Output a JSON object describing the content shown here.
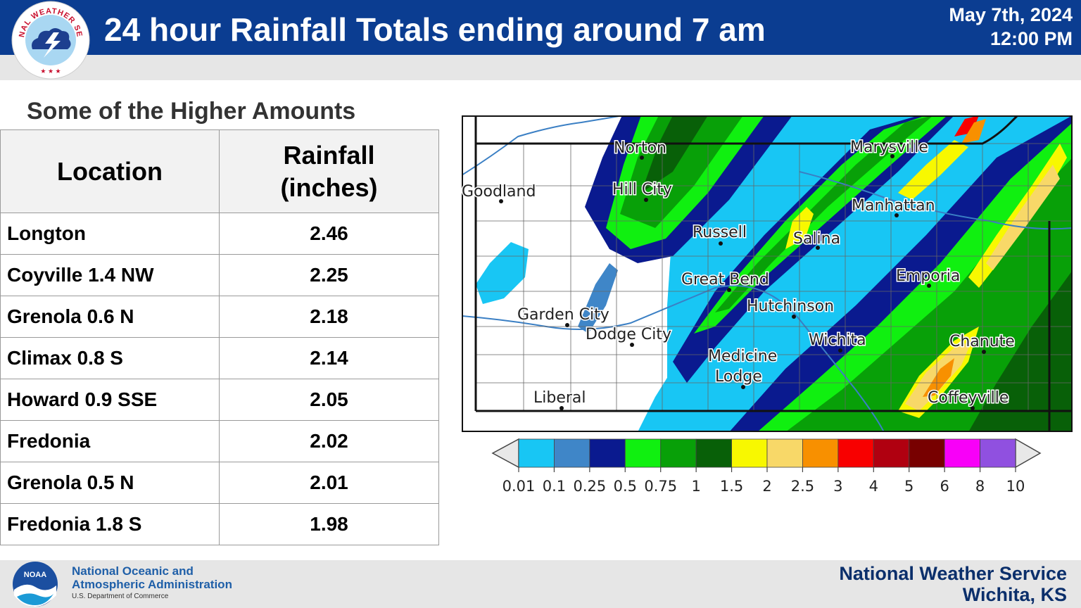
{
  "header": {
    "title": "24 hour Rainfall Totals ending around 7 am",
    "date": "May 7th, 2024",
    "time": "12:00 PM",
    "logo_text": "NATIONAL WEATHER SERVICE"
  },
  "subtitle": "Some of the Higher Amounts",
  "table": {
    "col_location": "Location",
    "col_rainfall": "Rainfall",
    "col_rainfall_unit": "(inches)",
    "rows": [
      {
        "location": "Longton",
        "rainfall": "2.46"
      },
      {
        "location": "Coyville 1.4 NW",
        "rainfall": "2.25"
      },
      {
        "location": "Grenola 0.6 N",
        "rainfall": "2.18"
      },
      {
        "location": "Climax 0.8 S",
        "rainfall": "2.14"
      },
      {
        "location": "Howard 0.9 SSE",
        "rainfall": "2.05"
      },
      {
        "location": "Fredonia",
        "rainfall": "2.02"
      },
      {
        "location": "Grenola 0.5 N",
        "rainfall": "2.01"
      },
      {
        "location": "Fredonia 1.8 S",
        "rainfall": "1.98"
      }
    ]
  },
  "map": {
    "cities": {
      "norton": "Norton",
      "marysville": "Marysville",
      "goodland": "Goodland",
      "hill_city": "Hill City",
      "manhattan": "Manhattan",
      "russell": "Russell",
      "salina": "Salina",
      "great_bend": "Great Bend",
      "emporia": "Emporia",
      "hutchinson": "Hutchinson",
      "garden_city": "Garden City",
      "dodge_city": "Dodge City",
      "wichita": "Wichita",
      "chanute": "Chanute",
      "medicine": "Medicine",
      "lodge": "Lodge",
      "liberal": "Liberal",
      "coffeyville": "Coffeyville"
    },
    "colors": {
      "c1": "#18c6f4",
      "c2": "#3f86c8",
      "c3": "#0a1a8f",
      "c4": "#10f010",
      "c5": "#08a008",
      "c6": "#086008",
      "c7": "#f8f800",
      "c8": "#f8d868",
      "c9": "#f89000",
      "c10": "#f80000",
      "c11": "#b00010",
      "c12": "#780000",
      "c13": "#f800f8",
      "c14": "#9050e0"
    }
  },
  "colorbar": {
    "ticks": [
      "0.01",
      "0.1",
      "0.25",
      "0.5",
      "0.75",
      "1",
      "1.5",
      "2",
      "2.5",
      "3",
      "4",
      "5",
      "6",
      "8",
      "10"
    ]
  },
  "footer": {
    "noaa_line1": "National Oceanic and",
    "noaa_line2": "Atmospheric Administration",
    "noaa_line3": "U.S. Department of Commerce",
    "noaa_logo_text": "NOAA",
    "office_line1": "National Weather Service",
    "office_line2": "Wichita, KS"
  }
}
